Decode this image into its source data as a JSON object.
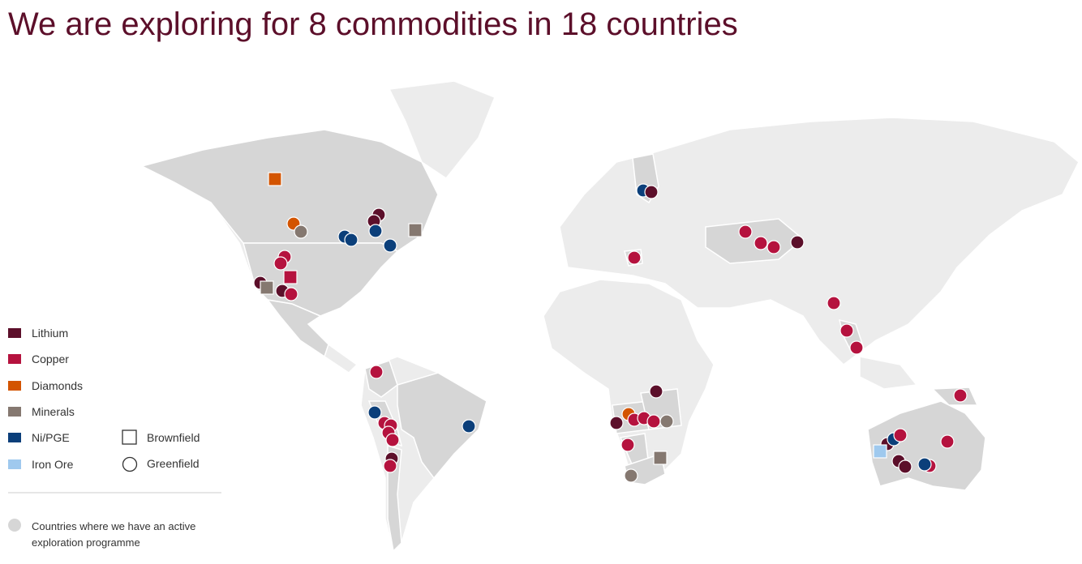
{
  "title": "We are exploring for 8 commodities in 18 countries",
  "legend": {
    "commodities": [
      {
        "label": "Lithium",
        "color": "#5c0f2a"
      },
      {
        "label": "Copper",
        "color": "#b5123e"
      },
      {
        "label": "Diamonds",
        "color": "#d35400"
      },
      {
        "label": "Minerals",
        "color": "#857870"
      },
      {
        "label": "Ni/PGE",
        "color": "#0b3f7a"
      },
      {
        "label": "Iron Ore",
        "color": "#9fc9ee"
      }
    ],
    "shapes": [
      {
        "label": "Brownfield"
      },
      {
        "label": "Greenfield"
      }
    ]
  },
  "note": "Countries where we have an active exploration programme"
}
